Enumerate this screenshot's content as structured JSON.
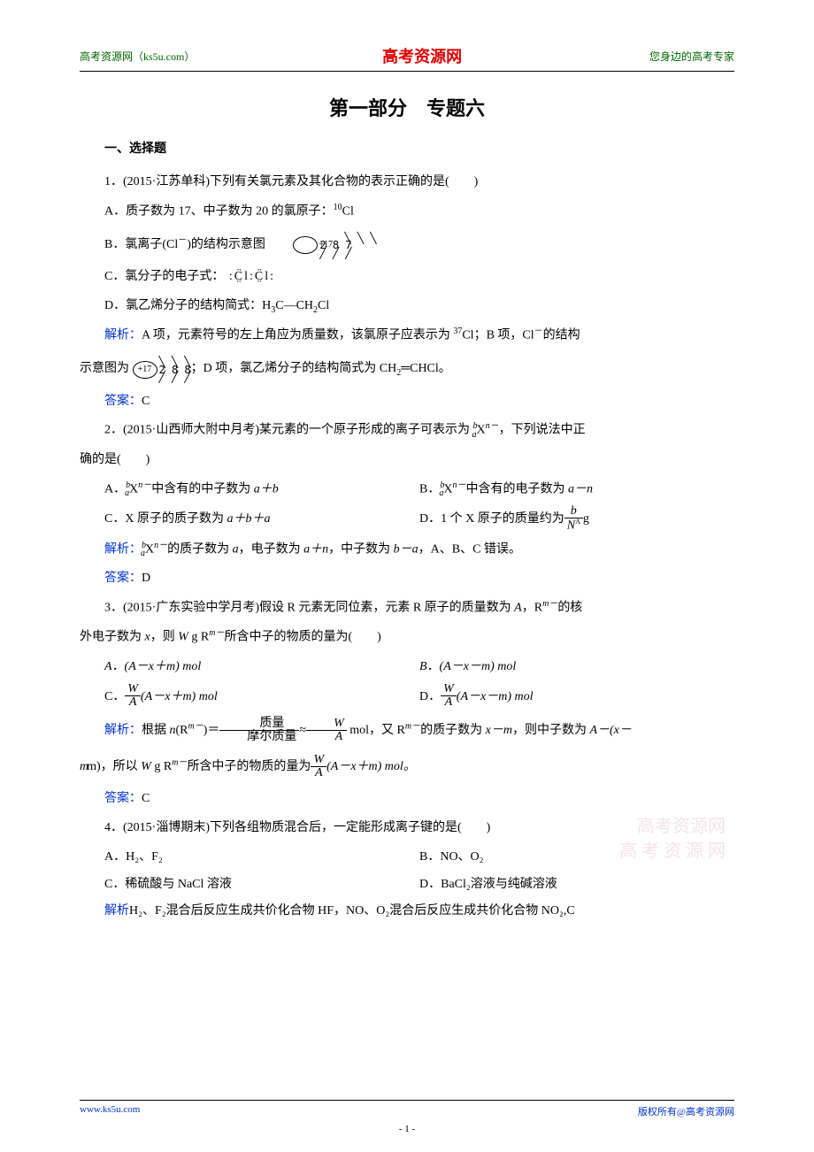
{
  "header": {
    "left": "高考资源网（ks5u.com）",
    "center": "高考资源网",
    "right": "您身边的高考专家"
  },
  "title": "第一部分　专题六",
  "section1": "一、选择题",
  "q1": {
    "stem": "1．(2015·江苏单科)下列有关氯元素及其化合物的表示正确的是(　　)",
    "optA_pre": "A．质子数为 17、中子数为 20 的氯原子：",
    "optA_sup": "10",
    "optA_el": "Cl",
    "optB_pre": "B．氯离子(Cl",
    "optB_sup": "－",
    "optB_post": ")的结构示意图",
    "diagram1_core": "+17",
    "diagram1_shells": "2 8 7",
    "optC": "C．氯分子的电子式：",
    "optD_pre": "D．氯乙烯分子的结构简式：H",
    "optD_s1": "3",
    "optD_mid": "C—CH",
    "optD_s2": "2",
    "optD_end": "Cl",
    "analysis_label": "解析：",
    "analysis_pre": "A 项，元素符号的左上角应为质量数，该氯原子应表示为 ",
    "analysis_sup1": "37",
    "analysis_mid1": "Cl；B 项，Cl",
    "analysis_sup2": "－",
    "analysis_mid2": "的结构",
    "analysis_line2_pre": "示意图为",
    "diagram2_core": "+17",
    "diagram2_shells": "2 8 8",
    "analysis_line2_mid": "；D 项，氯乙烯分子的结构简式为 CH",
    "analysis_line2_s1": "2",
    "analysis_line2_dbl": "═",
    "analysis_line2_mid2": "CHCl。",
    "answer_label": "答案：",
    "answer": "C"
  },
  "q2": {
    "stem_pre": "2．(2015·山西师大附中月考)某元素的一个原子形成的离子可表示为 ",
    "stem_sub": "a",
    "stem_sup": "b",
    "stem_x": "X",
    "stem_n": "n－",
    "stem_post": "，下列说法中正",
    "stem_line2": "确的是(　　)",
    "optA_pre": "A．",
    "optA_sub": "a",
    "optA_sup": "b",
    "optA_mid": "X",
    "optA_n": "n－",
    "optA_post": "中含有的中子数为 ",
    "optA_val": "a＋b",
    "optB_pre": "B．",
    "optB_sub": "a",
    "optB_sup": "b",
    "optB_mid": "X",
    "optB_n": "n－",
    "optB_post": "中含有的电子数为 ",
    "optB_val": "a－n",
    "optC_pre": "C．X 原子的质子数为 ",
    "optC_val": "a＋b＋a",
    "optD_pre": "D．1 个 X 原子的质量约为",
    "optD_num": "b",
    "optD_den": "N",
    "optD_den_sup": "A",
    "optD_unit": "g",
    "analysis_label": "解析：",
    "analysis_sub": "a",
    "analysis_sup": "b",
    "analysis_x": "X",
    "analysis_n": "n－",
    "analysis_mid1": "的质子数为 ",
    "analysis_a": "a",
    "analysis_mid2": "，电子数为 ",
    "analysis_apn": "a＋n",
    "analysis_mid3": "，中子数为 ",
    "analysis_bma": "b－a",
    "analysis_end": "，A、B、C 错误。",
    "answer_label": "答案：",
    "answer": "D"
  },
  "q3": {
    "stem_pre": "3．(2015·广东实验中学月考)假设 R 元素无同位素，元素 R 原子的质量数为 ",
    "stem_A": "A",
    "stem_mid": "，R",
    "stem_m": "m－",
    "stem_post": "的核",
    "stem_line2_pre": "外电子数为 ",
    "stem_x": "x",
    "stem_line2_mid": "，则 ",
    "stem_W": "W",
    "stem_line2_mid2": " g R",
    "stem_line2_m": "m－",
    "stem_line2_end": "所含中子的物质的量为(　　)",
    "optA": "A．(A－x＋m) mol",
    "optB": "B．(A－x－m) mol",
    "optC_pre": "C．",
    "optC_num": "W",
    "optC_den": "A",
    "optC_body": "(A－x＋m) mol",
    "optD_pre": "D．",
    "optD_num": "W",
    "optD_den": "A",
    "optD_body": "(A－x－m) mol",
    "analysis_label": "解析：",
    "analysis_pre": "根据 ",
    "analysis_n": "n",
    "analysis_R": "(R",
    "analysis_m": "m－",
    "analysis_eq": ")＝",
    "frac1_num": "质量",
    "frac1_den": "摩尔质量",
    "analysis_approx": "≈",
    "frac2_num": "W",
    "frac2_den": "A",
    "analysis_mol": " mol，又 R",
    "analysis_m2": "m－",
    "analysis_mid": "的质子数为 ",
    "analysis_xm": "x－m",
    "analysis_mid2": "，则中子数为 ",
    "analysis_neutron": "A－(x－",
    "analysis_line2_pre": "m)，所以 ",
    "analysis_W": "W",
    "analysis_line2_mid": " g R",
    "analysis_line2_m": "m－",
    "analysis_line2_mid2": "所含中子的物质的量为",
    "frac3_num": "W",
    "frac3_den": "A",
    "analysis_line2_end": "(A－x＋m) mol。",
    "answer_label": "答案：",
    "answer": "C"
  },
  "q4": {
    "stem": "4．(2015·淄博期末)下列各组物质混合后，一定能形成离子键的是(　　)",
    "optA": "A．H₂、F₂",
    "optB": "B．NO、O₂",
    "optC": "C．稀硫酸与 NaCl 溶液",
    "optD": "D．BaCl₂溶液与纯碱溶液",
    "analysis_label": "解析",
    "analysis": "H₂、F₂混合后反应生成共价化合物 HF，NO、O₂混合后反应生成共价化合物 NO₂,C"
  },
  "watermark_line1": "高考资源网",
  "watermark_line2": "高 考 资 源 网",
  "footer": {
    "left": "www.ks5u.com",
    "right": "版权所有@高考资源网"
  },
  "page_num": "- 1 -",
  "colors": {
    "header_green": "#006600",
    "header_red": "#dd0000",
    "blue": "#0033cc",
    "text": "#000000",
    "watermark": "#e8c8d8"
  }
}
